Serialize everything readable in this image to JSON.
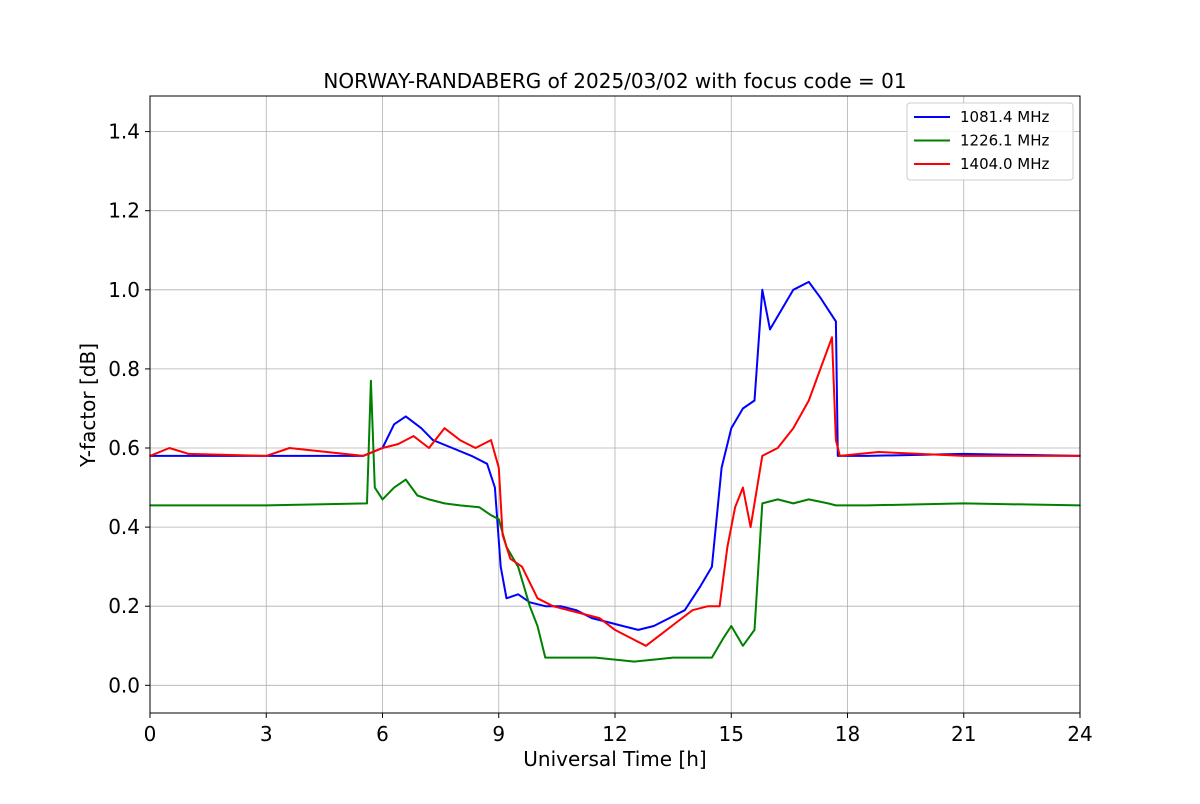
{
  "chart_data": {
    "type": "line",
    "title": "NORWAY-RANDABERG of 2025/03/02 with focus code = 01",
    "xlabel": "Universal Time [h]",
    "ylabel": "Y-factor [dB]",
    "xlim": [
      0,
      24
    ],
    "ylim": [
      -0.07,
      1.49
    ],
    "xticks": [
      0,
      3,
      6,
      9,
      12,
      15,
      18,
      21,
      24
    ],
    "yticks": [
      0.0,
      0.2,
      0.4,
      0.6,
      0.8,
      1.0,
      1.2,
      1.4
    ],
    "xtick_labels": [
      "0",
      "3",
      "6",
      "9",
      "12",
      "15",
      "18",
      "21",
      "24"
    ],
    "ytick_labels": [
      "0.0",
      "0.2",
      "0.4",
      "0.6",
      "0.8",
      "1.0",
      "1.2",
      "1.4"
    ],
    "grid": true,
    "legend_position": "top-right",
    "series": [
      {
        "name": "1081.4 MHz",
        "color": "#0000ff",
        "x": [
          0,
          3,
          5.5,
          6.0,
          6.3,
          6.6,
          7.0,
          7.3,
          7.8,
          8.3,
          8.7,
          8.9,
          9.05,
          9.2,
          9.5,
          9.8,
          10.2,
          10.6,
          11.0,
          11.4,
          11.8,
          12.2,
          12.6,
          13.0,
          13.4,
          13.8,
          14.2,
          14.5,
          14.75,
          15.0,
          15.3,
          15.6,
          15.8,
          16.0,
          16.3,
          16.6,
          17.0,
          17.3,
          17.5,
          17.7,
          17.75,
          18.5,
          21,
          24
        ],
        "y": [
          0.58,
          0.58,
          0.58,
          0.6,
          0.66,
          0.68,
          0.65,
          0.62,
          0.6,
          0.58,
          0.56,
          0.5,
          0.3,
          0.22,
          0.23,
          0.21,
          0.2,
          0.2,
          0.19,
          0.17,
          0.16,
          0.15,
          0.14,
          0.15,
          0.17,
          0.19,
          0.25,
          0.3,
          0.55,
          0.65,
          0.7,
          0.72,
          1.0,
          0.9,
          0.95,
          1.0,
          1.02,
          0.98,
          0.95,
          0.92,
          0.58,
          0.58,
          0.585,
          0.58
        ]
      },
      {
        "name": "1226.1 MHz",
        "color": "#008000",
        "x": [
          0,
          3,
          5.6,
          5.7,
          5.8,
          6.0,
          6.3,
          6.6,
          6.9,
          7.2,
          7.6,
          8.0,
          8.5,
          8.8,
          9.0,
          9.2,
          9.5,
          9.8,
          10.0,
          10.2,
          10.6,
          11.0,
          11.5,
          12.0,
          12.5,
          13.0,
          13.5,
          14.0,
          14.5,
          14.8,
          15.0,
          15.3,
          15.6,
          15.8,
          16.2,
          16.6,
          17.0,
          17.5,
          17.7,
          18.5,
          21,
          24
        ],
        "y": [
          0.455,
          0.455,
          0.46,
          0.77,
          0.5,
          0.47,
          0.5,
          0.52,
          0.48,
          0.47,
          0.46,
          0.455,
          0.45,
          0.43,
          0.42,
          0.35,
          0.3,
          0.2,
          0.15,
          0.07,
          0.07,
          0.07,
          0.07,
          0.065,
          0.06,
          0.065,
          0.07,
          0.07,
          0.07,
          0.12,
          0.15,
          0.1,
          0.14,
          0.46,
          0.47,
          0.46,
          0.47,
          0.46,
          0.455,
          0.455,
          0.46,
          0.455
        ]
      },
      {
        "name": "1404.0 MHz",
        "color": "#ff0000",
        "x": [
          0,
          0.5,
          1.0,
          3,
          3.6,
          5.5,
          6.0,
          6.4,
          6.8,
          7.2,
          7.6,
          8.0,
          8.4,
          8.8,
          9.0,
          9.1,
          9.3,
          9.6,
          10.0,
          10.4,
          10.8,
          11.2,
          11.6,
          12.0,
          12.4,
          12.8,
          13.2,
          13.6,
          14.0,
          14.4,
          14.7,
          14.9,
          15.1,
          15.3,
          15.5,
          15.8,
          16.2,
          16.6,
          17.0,
          17.3,
          17.6,
          17.7,
          17.8,
          18.8,
          21,
          24
        ],
        "y": [
          0.58,
          0.6,
          0.585,
          0.58,
          0.6,
          0.58,
          0.6,
          0.61,
          0.63,
          0.6,
          0.65,
          0.62,
          0.6,
          0.62,
          0.55,
          0.38,
          0.32,
          0.3,
          0.22,
          0.2,
          0.19,
          0.18,
          0.17,
          0.14,
          0.12,
          0.1,
          0.13,
          0.16,
          0.19,
          0.2,
          0.2,
          0.35,
          0.45,
          0.5,
          0.4,
          0.58,
          0.6,
          0.65,
          0.72,
          0.8,
          0.88,
          0.62,
          0.58,
          0.59,
          0.58,
          0.58
        ]
      }
    ]
  }
}
